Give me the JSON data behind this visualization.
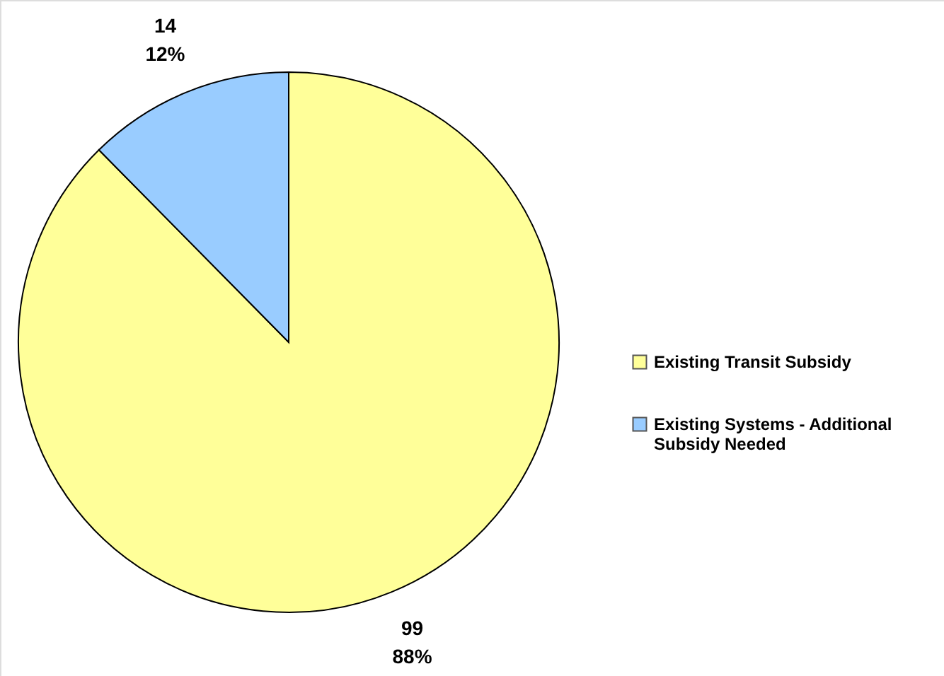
{
  "chart_data": {
    "type": "pie",
    "categories": [
      "Existing Transit Subsidy",
      "Existing Systems - Additional Subsidy Needed"
    ],
    "values": [
      99,
      14
    ],
    "colors": [
      "#ffff99",
      "#99ccff"
    ],
    "value_labels": [
      "99\n88%",
      "14\n12%"
    ],
    "legend": "right"
  }
}
